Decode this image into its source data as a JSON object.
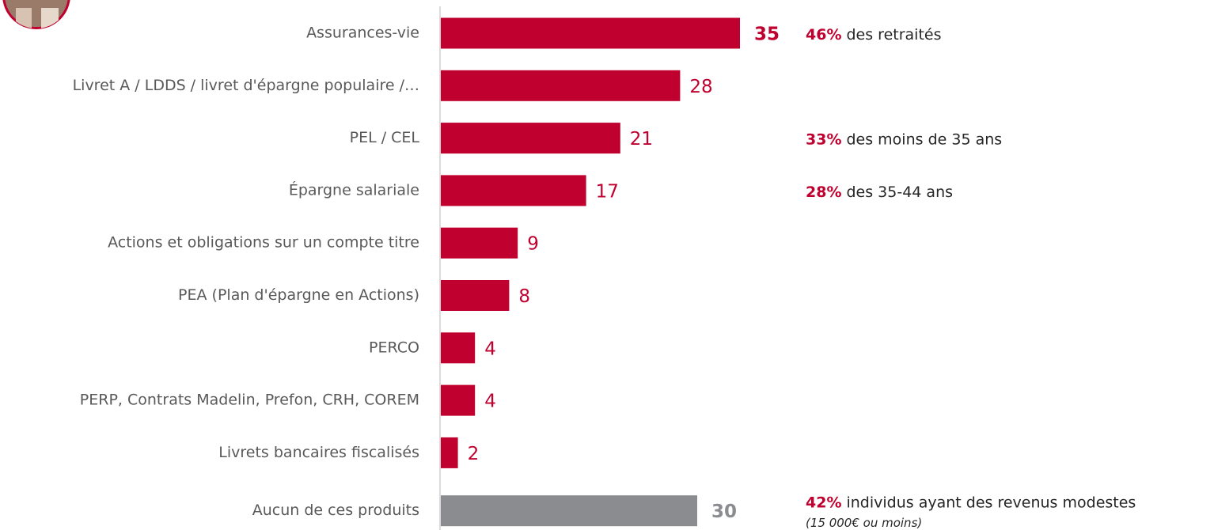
{
  "chart_data": {
    "type": "barh",
    "categories": [
      "Assurances-vie",
      "Livret A / LDDS / livret d'épargne populaire /…",
      "PEL / CEL",
      "Épargne salariale",
      "Actions et obligations sur un compte titre",
      "PEA (Plan d'épargne en Actions)",
      "PERCO",
      "PERP, Contrats Madelin, Prefon, CRH, COREM",
      "Livrets bancaires fiscalisés",
      "Aucun de ces produits"
    ],
    "values": [
      35,
      28,
      21,
      17,
      9,
      8,
      4,
      4,
      2,
      30
    ],
    "colors": [
      "#c0002f",
      "#c0002f",
      "#c0002f",
      "#c0002f",
      "#c0002f",
      "#c0002f",
      "#c0002f",
      "#c0002f",
      "#c0002f",
      "#8a8c8f"
    ],
    "bold_value_labels": [
      true,
      false,
      false,
      false,
      false,
      false,
      false,
      false,
      false,
      true
    ],
    "annotations": [
      {
        "highlight": "46%",
        "text": "des retraités"
      },
      null,
      {
        "highlight": "33%",
        "text": "des moins de 35 ans"
      },
      {
        "highlight": "28%",
        "text": "des 35-44 ans"
      },
      null,
      null,
      null,
      null,
      null,
      {
        "highlight": "42%",
        "text": "individus ayant des revenus modestes",
        "note": "(15 000€ ou moins)"
      }
    ]
  }
}
